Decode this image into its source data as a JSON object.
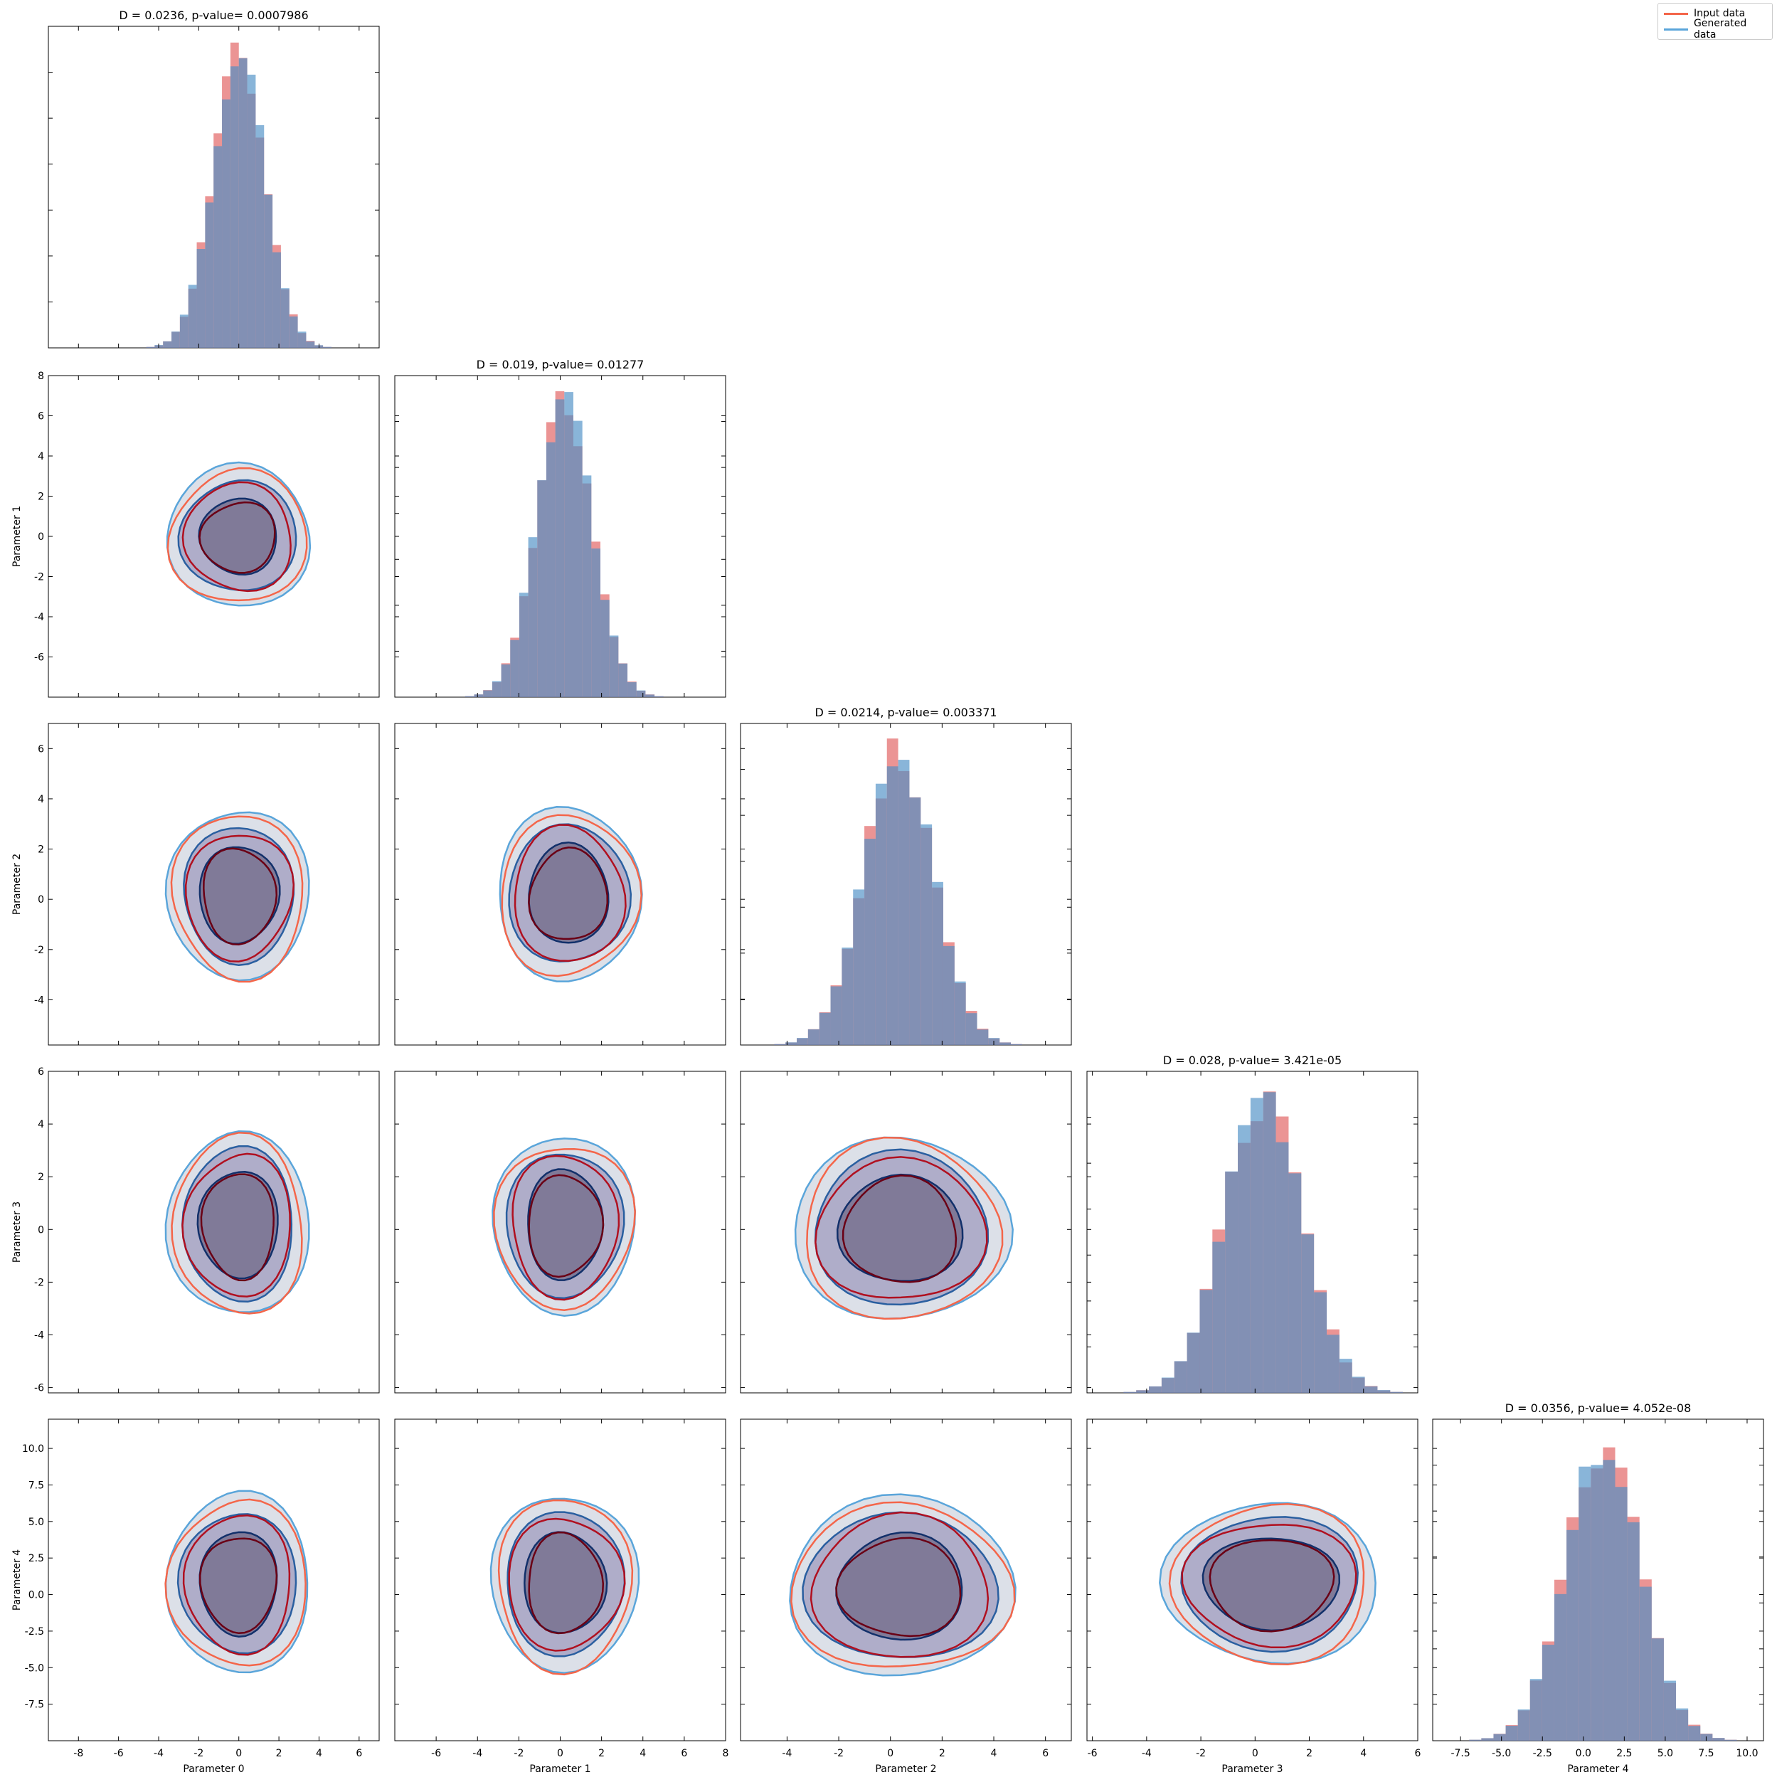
{
  "legend": {
    "entries": [
      {
        "label": "Input data",
        "color": "#f4664a"
      },
      {
        "label": "Generated data",
        "color": "#5aa5da"
      }
    ]
  },
  "colors": {
    "input_fill": "#e05a5a",
    "generated_fill": "#4a8ec4",
    "input_line": "#f4664a",
    "input_line_inner": "#b01020",
    "input_line_core": "#6a0015",
    "generated_line": "#5aa5da",
    "generated_line_inner": "#2a5fa0",
    "generated_line_core": "#12306a"
  },
  "chart_data": {
    "type": "corner",
    "parameters": [
      "Parameter 0",
      "Parameter 1",
      "Parameter 2",
      "Parameter 3",
      "Parameter 4"
    ],
    "x_axis": {
      "p0": {
        "lim": [
          -9.5,
          7
        ],
        "ticks": [
          -8,
          -6,
          -4,
          -2,
          0,
          2,
          4,
          6
        ]
      },
      "p1": {
        "lim": [
          -8,
          8
        ],
        "ticks": [
          -6,
          -4,
          -2,
          0,
          2,
          4,
          6,
          8
        ]
      },
      "p2": {
        "lim": [
          -5.8,
          7
        ],
        "ticks": [
          -4,
          -2,
          0,
          2,
          4,
          6
        ]
      },
      "p3": {
        "lim": [
          -6.2,
          6
        ],
        "ticks": [
          -6,
          -4,
          -2,
          0,
          2,
          4,
          6
        ]
      },
      "p4": {
        "lim": [
          -9.2,
          11
        ],
        "ticks": [
          -7.5,
          -5.0,
          -2.5,
          0.0,
          2.5,
          5.0,
          7.5,
          10.0
        ]
      }
    },
    "y_axis": {
      "p1": {
        "lim": [
          -8,
          8
        ],
        "ticks": [
          -6,
          -4,
          -2,
          0,
          2,
          4,
          6,
          8
        ]
      },
      "p2": {
        "lim": [
          -5.8,
          7
        ],
        "ticks": [
          -4,
          -2,
          0,
          2,
          4,
          6
        ]
      },
      "p3": {
        "lim": [
          -6.2,
          6
        ],
        "ticks": [
          -6,
          -4,
          -2,
          0,
          2,
          4,
          6
        ]
      },
      "p4": {
        "lim": [
          -10,
          12
        ],
        "ticks": [
          -7.5,
          -5.0,
          -2.5,
          0.0,
          2.5,
          5.0,
          7.5,
          10.0
        ]
      }
    },
    "diagonal": [
      {
        "param": "Parameter 0",
        "title": "D = 0.0236, p-value= 0.0007986",
        "mean": 0,
        "std": 1.3,
        "ks_D": 0.0236,
        "p_value": 0.0007986
      },
      {
        "param": "Parameter 1",
        "title": "D = 0.019, p-value= 0.01277",
        "mean": 0.2,
        "std": 1.35,
        "ks_D": 0.019,
        "p_value": 0.01277
      },
      {
        "param": "Parameter 2",
        "title": "D = 0.0214, p-value= 0.003371",
        "mean": 0.3,
        "std": 1.35,
        "ks_D": 0.0214,
        "p_value": 0.003371
      },
      {
        "param": "Parameter 3",
        "title": "D = 0.028, p-value= 3.421e-05",
        "mean": 0.3,
        "std": 1.45,
        "ks_D": 0.028,
        "p_value": 3.421e-05
      },
      {
        "param": "Parameter 4",
        "title": "D = 0.0356, p-value= 4.052e-08",
        "mean": 1.2,
        "std": 2.3,
        "ks_D": 0.0356,
        "p_value": 4.052e-08
      }
    ],
    "contour_levels": [
      "outer",
      "middle",
      "inner"
    ],
    "off_diagonal_pairs": [
      {
        "x": "Parameter 0",
        "y": "Parameter 1",
        "center": [
          0,
          0
        ],
        "radii": [
          [
            3.5,
            3.4
          ],
          [
            2.8,
            2.7
          ],
          [
            1.9,
            1.8
          ]
        ]
      },
      {
        "x": "Parameter 0",
        "y": "Parameter 2",
        "center": [
          0,
          0.2
        ],
        "radii": [
          [
            3.4,
            3.3
          ],
          [
            2.7,
            2.6
          ],
          [
            1.9,
            1.9
          ]
        ]
      },
      {
        "x": "Parameter 1",
        "y": "Parameter 2",
        "center": [
          0.4,
          0.2
        ],
        "radii": [
          [
            3.4,
            3.3
          ],
          [
            2.8,
            2.7
          ],
          [
            1.9,
            1.9
          ]
        ]
      },
      {
        "x": "Parameter 0",
        "y": "Parameter 3",
        "center": [
          0,
          0.2
        ],
        "radii": [
          [
            3.4,
            3.4
          ],
          [
            2.7,
            2.8
          ],
          [
            1.9,
            2.0
          ]
        ]
      },
      {
        "x": "Parameter 1",
        "y": "Parameter 3",
        "center": [
          0.2,
          0.2
        ],
        "radii": [
          [
            3.4,
            3.2
          ],
          [
            2.7,
            2.7
          ],
          [
            1.8,
            2.0
          ]
        ]
      },
      {
        "x": "Parameter 2",
        "y": "Parameter 3",
        "center": [
          0.4,
          0.0
        ],
        "radii": [
          [
            4.0,
            3.4
          ],
          [
            3.3,
            2.8
          ],
          [
            2.3,
            2.0
          ]
        ]
      },
      {
        "x": "Parameter 0",
        "y": "Parameter 4",
        "center": [
          0,
          0.8
        ],
        "radii": [
          [
            3.5,
            5.9
          ],
          [
            2.8,
            4.7
          ],
          [
            1.9,
            3.4
          ]
        ]
      },
      {
        "x": "Parameter 1",
        "y": "Parameter 4",
        "center": [
          0.2,
          0.8
        ],
        "radii": [
          [
            3.4,
            5.9
          ],
          [
            2.8,
            4.7
          ],
          [
            1.9,
            3.4
          ]
        ]
      },
      {
        "x": "Parameter 2",
        "y": "Parameter 4",
        "center": [
          0.4,
          0.5
        ],
        "radii": [
          [
            4.3,
            5.9
          ],
          [
            3.6,
            4.9
          ],
          [
            2.4,
            3.5
          ]
        ]
      },
      {
        "x": "Parameter 3",
        "y": "Parameter 4",
        "center": [
          0.6,
          0.8
        ],
        "radii": [
          [
            3.8,
            5.4
          ],
          [
            3.2,
            4.4
          ],
          [
            2.4,
            3.1
          ]
        ]
      }
    ]
  }
}
